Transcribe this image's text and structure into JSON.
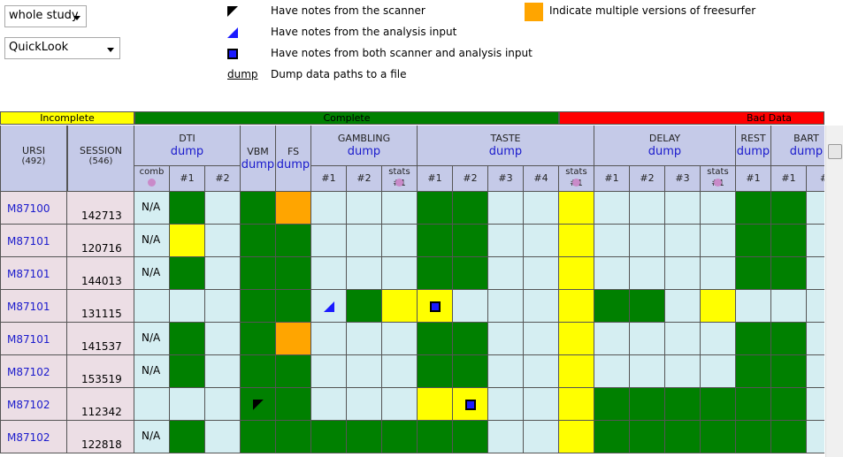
{
  "controls": {
    "scope": "whole study",
    "view": "QuickLook"
  },
  "legend": [
    {
      "label": "Have notes from the scanner"
    },
    {
      "label": "Have notes from the analysis input"
    },
    {
      "label": "Have notes from both scanner and analysis input"
    },
    {
      "key": "dump",
      "label": "Dump data paths to a file"
    },
    {
      "label": "Indicate multiple versions of freesurfer",
      "color": "#ffa500"
    }
  ],
  "status_bar": [
    {
      "label": "Incomplete",
      "color": "#ffff00"
    },
    {
      "label": "Complete",
      "color": "#008000"
    },
    {
      "label": "Bad Data",
      "color": "#ff0000"
    }
  ],
  "table": {
    "ursi_header": "URSI",
    "ursi_count": "(492)",
    "session_header": "SESSION",
    "session_count": "(546)",
    "groups": [
      {
        "title": "DTI",
        "link": "dump",
        "subs": [
          "comb",
          "#1",
          "#2"
        ]
      },
      {
        "title": "VBM",
        "link": "dump",
        "subs": []
      },
      {
        "title": "FS",
        "link": "dump",
        "subs": []
      },
      {
        "title": "GAMBLING",
        "link": "dump",
        "subs": [
          "#1",
          "#2",
          "stats #1"
        ]
      },
      {
        "title": "TASTE",
        "link": "dump",
        "subs": [
          "#1",
          "#2",
          "#3",
          "#4",
          "stats #1"
        ]
      },
      {
        "title": "DELAY",
        "link": "dump",
        "subs": [
          "#1",
          "#2",
          "#3",
          "stats #1"
        ]
      },
      {
        "title": "REST",
        "link": "dump",
        "subs": [
          "#1"
        ]
      },
      {
        "title": "BART",
        "link": "dump",
        "subs": [
          "#1",
          "#"
        ]
      }
    ],
    "rows": [
      {
        "ursi": "M87100",
        "session": "142713",
        "comb": "N/A",
        "cells": [
          "#d5eef2",
          "#008000",
          "#d5eef2",
          "#008000",
          "#ffa500",
          "#d5eef2",
          "#d5eef2",
          "#d5eef2",
          "#008000",
          "#008000",
          "#d5eef2",
          "#d5eef2",
          "#ffff00",
          "#d5eef2",
          "#d5eef2",
          "#d5eef2",
          "#d5eef2",
          "#008000",
          "#008000",
          "#d5eef2"
        ],
        "notes": []
      },
      {
        "ursi": "M87101",
        "session": "120716",
        "comb": "N/A",
        "cells": [
          "#d5eef2",
          "#ffff00",
          "#d5eef2",
          "#008000",
          "#008000",
          "#d5eef2",
          "#d5eef2",
          "#d5eef2",
          "#008000",
          "#008000",
          "#d5eef2",
          "#d5eef2",
          "#ffff00",
          "#d5eef2",
          "#d5eef2",
          "#d5eef2",
          "#d5eef2",
          "#008000",
          "#008000",
          "#d5eef2"
        ],
        "notes": []
      },
      {
        "ursi": "M87101",
        "session": "144013",
        "comb": "N/A",
        "cells": [
          "#d5eef2",
          "#008000",
          "#d5eef2",
          "#008000",
          "#008000",
          "#d5eef2",
          "#d5eef2",
          "#d5eef2",
          "#008000",
          "#008000",
          "#d5eef2",
          "#d5eef2",
          "#ffff00",
          "#d5eef2",
          "#d5eef2",
          "#d5eef2",
          "#d5eef2",
          "#008000",
          "#008000",
          "#d5eef2"
        ],
        "notes": []
      },
      {
        "ursi": "M87101",
        "session": "131115",
        "comb": null,
        "cells": [
          "#d5eef2",
          "#d5eef2",
          "#d5eef2",
          "#008000",
          "#008000",
          "#d5eef2",
          "#008000",
          "#ffff00",
          "#ffff00",
          "#d5eef2",
          "#d5eef2",
          "#d5eef2",
          "#ffff00",
          "#008000",
          "#008000",
          "#d5eef2",
          "#ffff00",
          "#d5eef2",
          "#d5eef2",
          "#d5eef2"
        ],
        "notes": [
          {
            "column": 5,
            "legend": 1
          },
          {
            "column": 8,
            "legend": 2
          }
        ]
      },
      {
        "ursi": "M87101",
        "session": "141537",
        "comb": "N/A",
        "cells": [
          "#d5eef2",
          "#008000",
          "#d5eef2",
          "#008000",
          "#ffa500",
          "#d5eef2",
          "#d5eef2",
          "#d5eef2",
          "#008000",
          "#008000",
          "#d5eef2",
          "#d5eef2",
          "#ffff00",
          "#d5eef2",
          "#d5eef2",
          "#d5eef2",
          "#d5eef2",
          "#008000",
          "#008000",
          "#d5eef2"
        ],
        "notes": []
      },
      {
        "ursi": "M87102",
        "session": "153519",
        "comb": "N/A",
        "cells": [
          "#d5eef2",
          "#008000",
          "#d5eef2",
          "#008000",
          "#008000",
          "#d5eef2",
          "#d5eef2",
          "#d5eef2",
          "#008000",
          "#008000",
          "#d5eef2",
          "#d5eef2",
          "#ffff00",
          "#d5eef2",
          "#d5eef2",
          "#d5eef2",
          "#d5eef2",
          "#008000",
          "#008000",
          "#d5eef2"
        ],
        "notes": []
      },
      {
        "ursi": "M87102",
        "session": "112342",
        "comb": null,
        "cells": [
          "#d5eef2",
          "#d5eef2",
          "#d5eef2",
          "#008000",
          "#008000",
          "#d5eef2",
          "#d5eef2",
          "#d5eef2",
          "#ffff00",
          "#ffff00",
          "#d5eef2",
          "#d5eef2",
          "#ffff00",
          "#008000",
          "#008000",
          "#008000",
          "#008000",
          "#008000",
          "#008000",
          "#d5eef2"
        ],
        "notes": [
          {
            "column": 3,
            "legend": 0
          },
          {
            "column": 9,
            "legend": 2
          }
        ]
      },
      {
        "ursi": "M87102",
        "session": "122818",
        "comb": "N/A",
        "cells": [
          "#d5eef2",
          "#008000",
          "#d5eef2",
          "#008000",
          "#008000",
          "#008000",
          "#008000",
          "#008000",
          "#008000",
          "#008000",
          "#d5eef2",
          "#d5eef2",
          "#ffff00",
          "#008000",
          "#008000",
          "#008000",
          "#008000",
          "#008000",
          "#008000",
          "#d5eef2"
        ],
        "notes": []
      }
    ]
  }
}
